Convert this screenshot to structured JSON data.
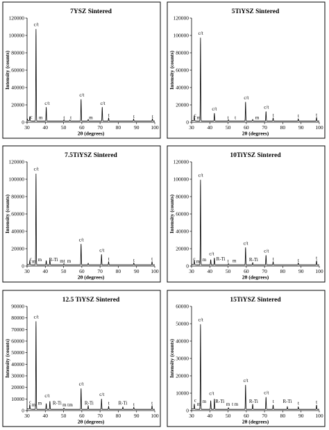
{
  "chart_data": [
    {
      "type": "line",
      "title": "7YSZ Sintered",
      "xlabel": "2θ (degrees)",
      "ylabel": "Intensity (counts)",
      "xlim": [
        30,
        100
      ],
      "ylim": [
        0,
        120000
      ],
      "xticks": [
        30,
        40,
        50,
        60,
        70,
        80,
        90,
        100
      ],
      "yticks": [
        0,
        20000,
        40000,
        60000,
        80000,
        100000,
        120000
      ],
      "peaks": [
        [
          30.2,
          1800
        ],
        [
          31.5,
          5000
        ],
        [
          34.9,
          106000
        ],
        [
          40.5,
          16000
        ],
        [
          50.2,
          1400
        ],
        [
          53.5,
          1200
        ],
        [
          59.6,
          25000
        ],
        [
          63.5,
          1800
        ],
        [
          71.2,
          16000
        ],
        [
          74.7,
          3500
        ],
        [
          88.4,
          2200
        ],
        [
          98.7,
          2500
        ]
      ],
      "annotations": [
        {
          "text": "c/t",
          "x": 35,
          "y": 111000
        },
        {
          "text": "c/t",
          "x": 41,
          "y": 20000
        },
        {
          "text": "c/t",
          "x": 60,
          "y": 29500
        },
        {
          "text": "c/t",
          "x": 71.5,
          "y": 20000
        },
        {
          "text": "c",
          "x": 32.3,
          "y": 4500
        },
        {
          "text": "m",
          "x": 37.5,
          "y": 3500
        },
        {
          "text": "t",
          "x": 50.3,
          "y": 3500
        },
        {
          "text": "t",
          "x": 54,
          "y": 3500
        },
        {
          "text": "m",
          "x": 65,
          "y": 3500
        },
        {
          "text": "t",
          "x": 74.8,
          "y": 6500
        },
        {
          "text": "t",
          "x": 88.6,
          "y": 5000
        },
        {
          "text": "t",
          "x": 98.8,
          "y": 5000
        }
      ]
    },
    {
      "type": "line",
      "title": "5TiYSZ Sintered",
      "xlabel": "2θ (degrees)",
      "ylabel": "Intensity (counts)",
      "xlim": [
        30,
        100
      ],
      "ylim": [
        0,
        120000
      ],
      "xticks": [
        30,
        40,
        50,
        60,
        70,
        80,
        90,
        100
      ],
      "yticks": [
        0,
        20000,
        40000,
        60000,
        80000,
        100000,
        120000
      ],
      "peaks": [
        [
          31.5,
          6000
        ],
        [
          34.9,
          96000
        ],
        [
          42.5,
          9000
        ],
        [
          50.2,
          1400
        ],
        [
          59.6,
          22000
        ],
        [
          63.5,
          1800
        ],
        [
          70.8,
          11000
        ],
        [
          74.7,
          3500
        ],
        [
          88.5,
          2500
        ],
        [
          98.5,
          4000
        ]
      ],
      "annotations": [
        {
          "text": "c/t",
          "x": 35,
          "y": 101000
        },
        {
          "text": "c/t",
          "x": 42.5,
          "y": 13500
        },
        {
          "text": "c/t",
          "x": 60,
          "y": 26500
        },
        {
          "text": "c/t",
          "x": 71,
          "y": 15500
        },
        {
          "text": "c",
          "x": 31.9,
          "y": 6500
        },
        {
          "text": "m",
          "x": 33.9,
          "y": 3500
        },
        {
          "text": "t",
          "x": 50,
          "y": 3500
        },
        {
          "text": "t",
          "x": 54,
          "y": 3500
        },
        {
          "text": "m",
          "x": 66,
          "y": 3500
        },
        {
          "text": "t",
          "x": 74.8,
          "y": 6500
        },
        {
          "text": "t",
          "x": 88.6,
          "y": 5500
        },
        {
          "text": "t",
          "x": 98.5,
          "y": 7000
        }
      ]
    },
    {
      "type": "line",
      "title": "7.5TiYSZ Sintered",
      "xlabel": "2θ (degrees)",
      "ylabel": "Intensity (counts)",
      "xlim": [
        30,
        100
      ],
      "ylim": [
        0,
        120000
      ],
      "xticks": [
        30,
        40,
        50,
        60,
        70,
        80,
        90,
        100
      ],
      "yticks": [
        0,
        20000,
        40000,
        60000,
        80000,
        100000,
        120000
      ],
      "peaks": [
        [
          31.5,
          4500
        ],
        [
          34.9,
          105000
        ],
        [
          40.5,
          5000
        ],
        [
          42.5,
          6000
        ],
        [
          50.2,
          1400
        ],
        [
          59.6,
          24000
        ],
        [
          63.5,
          1800
        ],
        [
          70.8,
          12000
        ],
        [
          74.7,
          3500
        ],
        [
          88.5,
          2200
        ],
        [
          98.5,
          3500
        ]
      ],
      "annotations": [
        {
          "text": "c/t",
          "x": 35,
          "y": 110000
        },
        {
          "text": "c/t",
          "x": 59.7,
          "y": 28500
        },
        {
          "text": "c/t",
          "x": 71,
          "y": 16500
        },
        {
          "text": "c",
          "x": 32,
          "y": 6500
        },
        {
          "text": "m",
          "x": 33.7,
          "y": 3500
        },
        {
          "text": "m",
          "x": 37,
          "y": 5500
        },
        {
          "text": "R-Ti",
          "x": 44.5,
          "y": 5500
        },
        {
          "text": "m",
          "x": 49,
          "y": 4000
        },
        {
          "text": "t",
          "x": 50.5,
          "y": 4000
        },
        {
          "text": "m",
          "x": 53,
          "y": 4000
        },
        {
          "text": "t",
          "x": 74.8,
          "y": 6500
        },
        {
          "text": "t",
          "x": 88.6,
          "y": 5000
        },
        {
          "text": "t",
          "x": 98.5,
          "y": 6500
        }
      ]
    },
    {
      "type": "line",
      "title": "10TiYSZ Sintered",
      "xlabel": "2θ (degrees)",
      "ylabel": "Intensity (counts)",
      "xlim": [
        30,
        100
      ],
      "ylim": [
        0,
        120000
      ],
      "xticks": [
        30,
        40,
        50,
        60,
        70,
        80,
        90,
        100
      ],
      "yticks": [
        0,
        20000,
        40000,
        60000,
        80000,
        100000,
        120000
      ],
      "peaks": [
        [
          31.5,
          5000
        ],
        [
          34.9,
          98000
        ],
        [
          40.5,
          6000
        ],
        [
          42.5,
          8000
        ],
        [
          50.2,
          1400
        ],
        [
          59.6,
          20000
        ],
        [
          63.5,
          2500
        ],
        [
          70.8,
          11000
        ],
        [
          74.7,
          3500
        ],
        [
          88.5,
          2200
        ],
        [
          98.5,
          4500
        ]
      ],
      "annotations": [
        {
          "text": "c/t",
          "x": 35,
          "y": 103000
        },
        {
          "text": "c/t",
          "x": 41,
          "y": 12500
        },
        {
          "text": "c/t",
          "x": 59.7,
          "y": 24500
        },
        {
          "text": "c/t",
          "x": 71,
          "y": 15500
        },
        {
          "text": "c",
          "x": 31.5,
          "y": 6500
        },
        {
          "text": "m",
          "x": 33.5,
          "y": 3500
        },
        {
          "text": "m",
          "x": 37,
          "y": 5500
        },
        {
          "text": "R-Ti",
          "x": 46,
          "y": 6500
        },
        {
          "text": "t",
          "x": 50,
          "y": 4000
        },
        {
          "text": "m",
          "x": 53.5,
          "y": 4500
        },
        {
          "text": "R-Ti",
          "x": 64,
          "y": 5500
        },
        {
          "text": "t",
          "x": 74.8,
          "y": 6500
        },
        {
          "text": "t",
          "x": 88.6,
          "y": 5000
        },
        {
          "text": "t",
          "x": 98.5,
          "y": 7500
        }
      ]
    },
    {
      "type": "line",
      "title": "12.5 TiYSZ Sintered",
      "xlabel": "2θ (degrees)",
      "ylabel": "Intensity (counts)",
      "xlim": [
        30,
        100
      ],
      "ylim": [
        0,
        90000
      ],
      "xticks": [
        30,
        40,
        50,
        60,
        70,
        80,
        90,
        100
      ],
      "yticks": [
        0,
        10000,
        20000,
        30000,
        40000,
        50000,
        60000,
        70000,
        80000,
        90000
      ],
      "peaks": [
        [
          31.5,
          4000
        ],
        [
          34.9,
          76000
        ],
        [
          40.5,
          5000
        ],
        [
          42.5,
          7000
        ],
        [
          50.2,
          1000
        ],
        [
          59.6,
          18000
        ],
        [
          63.5,
          3000
        ],
        [
          70.8,
          9000
        ],
        [
          74.7,
          2500
        ],
        [
          82.5,
          2000
        ],
        [
          88.5,
          1800
        ],
        [
          98.5,
          3000
        ]
      ],
      "annotations": [
        {
          "text": "c/t",
          "x": 35,
          "y": 79500
        },
        {
          "text": "c/t",
          "x": 41,
          "y": 11500
        },
        {
          "text": "c/t",
          "x": 59.7,
          "y": 21500
        },
        {
          "text": "c/t",
          "x": 71,
          "y": 12500
        },
        {
          "text": "c",
          "x": 31.7,
          "y": 6000
        },
        {
          "text": "m",
          "x": 33.6,
          "y": 3500
        },
        {
          "text": "m",
          "x": 37,
          "y": 5000
        },
        {
          "text": "R-Ti",
          "x": 46.5,
          "y": 5000
        },
        {
          "text": "m",
          "x": 50.5,
          "y": 3500
        },
        {
          "text": "t",
          "x": 52.5,
          "y": 3500
        },
        {
          "text": "m",
          "x": 54,
          "y": 3500
        },
        {
          "text": "R-Ti",
          "x": 64,
          "y": 5000
        },
        {
          "text": "t",
          "x": 74.8,
          "y": 5000
        },
        {
          "text": "R-Ti",
          "x": 82.5,
          "y": 5000
        },
        {
          "text": "t",
          "x": 88.6,
          "y": 4000
        },
        {
          "text": "t",
          "x": 98.5,
          "y": 5000
        }
      ]
    },
    {
      "type": "line",
      "title": "15TiYSZ Sintered",
      "xlabel": "2θ (degrees)",
      "ylabel": "Intensity (counts)",
      "xlim": [
        30,
        100
      ],
      "ylim": [
        0,
        60000
      ],
      "xticks": [
        30,
        40,
        50,
        60,
        70,
        80,
        90,
        100
      ],
      "yticks": [
        0,
        10000,
        20000,
        30000,
        40000,
        50000,
        60000
      ],
      "peaks": [
        [
          31.5,
          3000
        ],
        [
          34.9,
          49000
        ],
        [
          40.5,
          5000
        ],
        [
          42.5,
          6000
        ],
        [
          50.2,
          900
        ],
        [
          59.6,
          14000
        ],
        [
          63.5,
          3000
        ],
        [
          70.8,
          7000
        ],
        [
          74.7,
          2500
        ],
        [
          82.5,
          1500
        ],
        [
          88.5,
          1400
        ],
        [
          98.5,
          2500
        ]
      ],
      "annotations": [
        {
          "text": "c/t",
          "x": 35,
          "y": 51500
        },
        {
          "text": "c/t",
          "x": 41,
          "y": 9000
        },
        {
          "text": "c/t",
          "x": 59.7,
          "y": 16500
        },
        {
          "text": "c/t",
          "x": 71,
          "y": 9500
        },
        {
          "text": "c",
          "x": 32,
          "y": 5000
        },
        {
          "text": "m",
          "x": 34,
          "y": 2800
        },
        {
          "text": "m",
          "x": 37,
          "y": 4500
        },
        {
          "text": "R-Ti",
          "x": 45.5,
          "y": 4500
        },
        {
          "text": "m",
          "x": 50,
          "y": 2800
        },
        {
          "text": "t",
          "x": 52.5,
          "y": 2800
        },
        {
          "text": "m",
          "x": 54.5,
          "y": 2800
        },
        {
          "text": "R-Ti",
          "x": 64,
          "y": 4500
        },
        {
          "text": "t",
          "x": 74.8,
          "y": 4500
        },
        {
          "text": "R-Ti",
          "x": 82.5,
          "y": 4500
        },
        {
          "text": "t",
          "x": 88.6,
          "y": 3500
        },
        {
          "text": "t",
          "x": 98.5,
          "y": 4000
        }
      ]
    }
  ]
}
